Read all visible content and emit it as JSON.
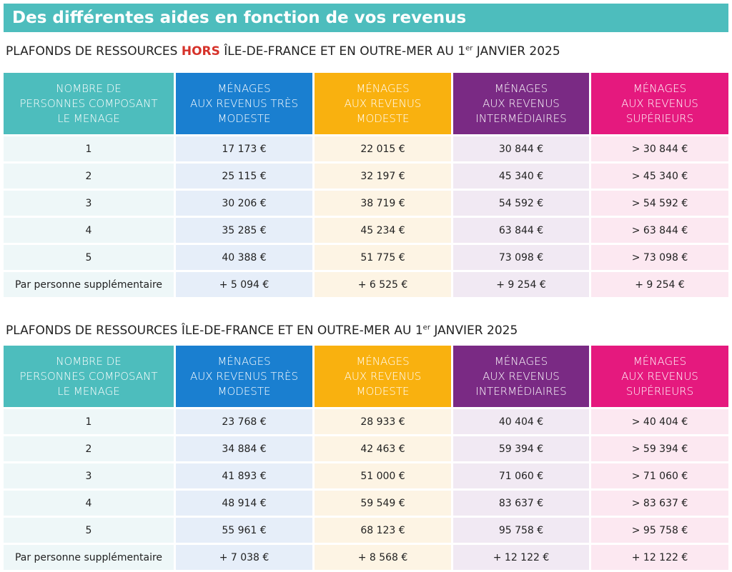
{
  "banner": "Des différentes aides en fonction de vos revenus",
  "tables": [
    {
      "title": {
        "before": "PLAFONDS DE RESSOURCES ",
        "highlight": "HORS",
        "after": " ÎLE-DE-FRANCE ET EN OUTRE-MER AU 1",
        "sup": "er",
        "end": " JANVIER 2025"
      },
      "header": [
        [
          "NOMBRE DE",
          "PERSONNES COMPOSANT",
          "LE MENAGE"
        ],
        [
          "MÉNAGES",
          "AUX REVENUS TRÈS",
          "MODESTE"
        ],
        [
          "MÉNAGES",
          "AUX REVENUS",
          "MODESTE"
        ],
        [
          "MÉNAGES",
          "AUX REVENUS",
          "INTERMÉDIAIRES"
        ],
        [
          "MÉNAGES",
          "AUX REVENUS",
          "SUPÉRIEURS"
        ]
      ],
      "rows": [
        [
          "1",
          "17 173 €",
          "22 015 €",
          "30 844 €",
          "> 30 844 €"
        ],
        [
          "2",
          "25 115 €",
          "32 197 €",
          "45 340 €",
          "> 45 340 €"
        ],
        [
          "3",
          "30 206 €",
          "38 719 €",
          "54 592 €",
          "> 54 592 €"
        ],
        [
          "4",
          "35 285 €",
          "45 234 €",
          "63 844 €",
          "> 63 844 €"
        ],
        [
          "5",
          "40 388 €",
          "51 775 €",
          "73 098 €",
          "> 73 098 €"
        ],
        [
          "Par personne supplémentaire",
          "+ 5 094 €",
          "+ 6 525 €",
          "+ 9 254 €",
          "+ 9 254 €"
        ]
      ]
    },
    {
      "title": {
        "before": "PLAFONDS DE RESSOURCES ÎLE-DE-FRANCE ET EN OUTRE-MER AU 1",
        "sup": "er",
        "end": " JANVIER 2025"
      },
      "header": [
        [
          "NOMBRE DE",
          "PERSONNES COMPOSANT",
          "LE MENAGE"
        ],
        [
          "MÉNAGES",
          "AUX REVENUS TRÈS",
          "MODESTE"
        ],
        [
          "MÉNAGES",
          "AUX REVENUS",
          "MODESTE"
        ],
        [
          "MÉNAGES",
          "AUX REVENUS",
          "INTERMÉDIAIRES"
        ],
        [
          "MÉNAGES",
          "AUX REVENUS",
          "SUPÉRIEURS"
        ]
      ],
      "rows": [
        [
          "1",
          "23 768 €",
          "28 933 €",
          "40 404 €",
          "> 40 404 €"
        ],
        [
          "2",
          "34 884 €",
          "42 463 €",
          "59 394 €",
          "> 59 394 €"
        ],
        [
          "3",
          "41 893 €",
          "51 000 €",
          "71 060 €",
          "> 71 060 €"
        ],
        [
          "4",
          "48 914 €",
          "59 549 €",
          "83 637 €",
          "> 83 637 €"
        ],
        [
          "5",
          "55 961 €",
          "68 123 €",
          "95 758 €",
          "> 95 758 €"
        ],
        [
          "Par personne supplémentaire",
          "+ 7 038 €",
          "+ 8 568 €",
          "+ 12 122 €",
          "+ 12 122 €"
        ]
      ]
    }
  ]
}
